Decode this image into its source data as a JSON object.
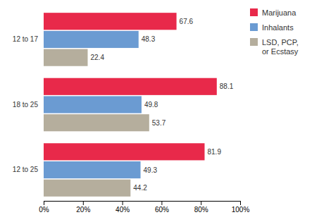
{
  "chart_data": {
    "type": "bar",
    "orientation": "horizontal",
    "categories": [
      "12 to 17",
      "18 to 25",
      "12 to 25"
    ],
    "series": [
      {
        "name": "Marijuana",
        "color": "#e8294a",
        "values": [
          67.6,
          88.1,
          81.9
        ]
      },
      {
        "name": "Inhalants",
        "color": "#6b9bd2",
        "values": [
          48.3,
          49.8,
          49.3
        ]
      },
      {
        "name": "LSD, PCP,\nor Ecstasy",
        "color": "#b5ae9d",
        "values": [
          22.4,
          53.7,
          44.2
        ]
      }
    ],
    "xlim": [
      0,
      100
    ],
    "xticks": [
      {
        "value": 0,
        "label": "0%"
      },
      {
        "value": 20,
        "label": "20%"
      },
      {
        "value": 40,
        "label": "40%"
      },
      {
        "value": 60,
        "label": "60%"
      },
      {
        "value": 80,
        "label": "80%"
      },
      {
        "value": 100,
        "label": "100%"
      }
    ],
    "data_labels": true,
    "grid": false,
    "legend": "upper right"
  }
}
